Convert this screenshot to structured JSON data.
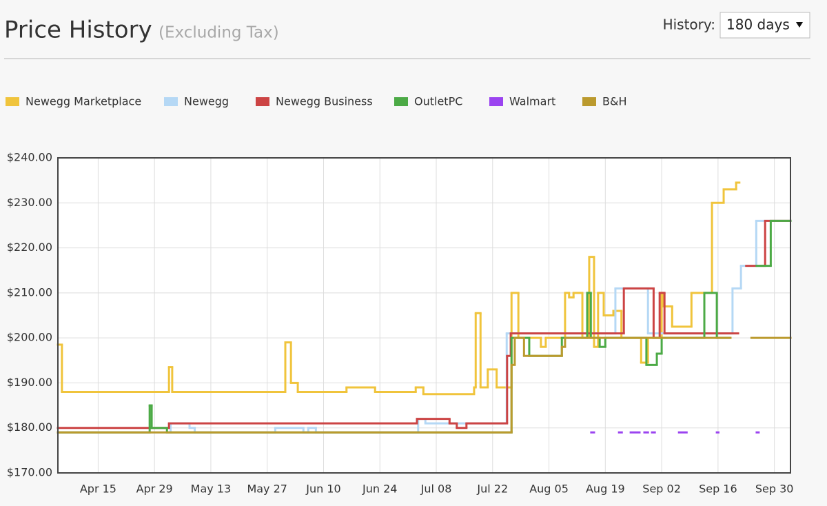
{
  "controls": {
    "history_label": "History:",
    "history_value": "180 days"
  },
  "chart_data": {
    "type": "step-line",
    "title": "Price History",
    "subtitle": "(Excluding Tax)",
    "xlim": [
      0,
      182
    ],
    "ylim": [
      170,
      240
    ],
    "grid": true,
    "xticks": [
      {
        "value": 10,
        "label": "Apr 15"
      },
      {
        "value": 24,
        "label": "Apr 29"
      },
      {
        "value": 38,
        "label": "May 13"
      },
      {
        "value": 52,
        "label": "May 27"
      },
      {
        "value": 66,
        "label": "Jun 10"
      },
      {
        "value": 80,
        "label": "Jun 24"
      },
      {
        "value": 94,
        "label": "Jul 08"
      },
      {
        "value": 108,
        "label": "Jul 22"
      },
      {
        "value": 122,
        "label": "Aug 05"
      },
      {
        "value": 136,
        "label": "Aug 19"
      },
      {
        "value": 150,
        "label": "Sep 02"
      },
      {
        "value": 164,
        "label": "Sep 16"
      },
      {
        "value": 178,
        "label": "Sep 30"
      }
    ],
    "yticks": [
      {
        "value": 170,
        "label": "$170.00"
      },
      {
        "value": 180,
        "label": "$180.00"
      },
      {
        "value": 190,
        "label": "$190.00"
      },
      {
        "value": 200,
        "label": "$200.00"
      },
      {
        "value": 210,
        "label": "$210.00"
      },
      {
        "value": 220,
        "label": "$220.00"
      },
      {
        "value": 230,
        "label": "$230.00"
      },
      {
        "value": 240,
        "label": "$240.00"
      }
    ],
    "series": [
      {
        "name": "Newegg Marketplace",
        "color": "#f0c43c",
        "x": [
          0,
          1,
          27.6,
          28.4,
          56.5,
          57.9,
          59.6,
          71.7,
          78.8,
          88.9,
          90.8,
          103.4,
          103.8,
          105,
          106.8,
          109,
          112.7,
          114.4,
          120,
          121.2,
          126,
          127,
          128.1,
          130.3,
          132,
          133.2,
          134.2,
          135.6,
          138,
          140,
          144.9,
          146.6,
          150,
          150.5,
          152.6,
          157.4,
          162.5,
          165.4,
          168.5,
          169.3
        ],
        "values": [
          198.5,
          188,
          193.5,
          188,
          199,
          190,
          188,
          189,
          188,
          189,
          187.5,
          189,
          205.5,
          189,
          193,
          189,
          210,
          200,
          198,
          200,
          210,
          209,
          210,
          200,
          218,
          198,
          210,
          205,
          206,
          200,
          194.5,
          200,
          210,
          207,
          202.5,
          210,
          230,
          233,
          234.5,
          null
        ]
      },
      {
        "name": "Newegg",
        "color": "#b5d8f5",
        "x": [
          0,
          28,
          32.7,
          34,
          54,
          61,
          62.2,
          64.1,
          89.5,
          91.3,
          111.5,
          138.5,
          146.6,
          167.6,
          169.7,
          173.5,
          182
        ],
        "values": [
          179,
          181,
          180,
          179,
          180,
          179,
          180,
          179,
          182,
          181,
          201,
          211,
          201,
          211,
          216,
          226,
          null
        ]
      },
      {
        "name": "Newegg Business",
        "color": "#cc4444",
        "x": [
          0,
          27.6,
          89.2,
          97.3,
          99.1,
          101.5,
          111.6,
          112.5,
          140.6,
          148,
          149.5,
          150.7,
          169,
          171,
          175.7,
          182
        ],
        "values": [
          180,
          181,
          182,
          181,
          180,
          181,
          196,
          201,
          211,
          200,
          210,
          201,
          null,
          216,
          226,
          null
        ]
      },
      {
        "name": "OutletPC",
        "color": "#4caa46",
        "x": [
          0,
          22.8,
          23.3,
          27.1,
          112.7,
          117.1,
          125.2,
          131.5,
          132.4,
          134.6,
          136,
          146.2,
          148.8,
          150,
          160.6,
          163.7,
          166.8,
          173.6,
          177.1,
          182
        ],
        "values": [
          179,
          185,
          180,
          179,
          200,
          196,
          200,
          210,
          200,
          198,
          200,
          194,
          196.5,
          200,
          210,
          200,
          null,
          216,
          226,
          null
        ]
      },
      {
        "name": "Walmart",
        "color": "#9b44f0",
        "x": [
          132.5,
          133.2,
          139.4,
          140.1,
          142.3,
          144.5,
          145.7,
          146.6,
          147.6,
          148.3,
          154.3,
          156.2,
          163.7,
          164.1,
          173.6,
          174.1
        ],
        "values": [
          179,
          null,
          179,
          null,
          179,
          null,
          179,
          null,
          179,
          null,
          179,
          null,
          179,
          null,
          179,
          null
        ]
      },
      {
        "name": "B&H",
        "color": "#bb9a2e",
        "x": [
          0,
          112.7,
          113.5,
          115.8,
          125.2,
          126,
          167.1,
          172.3,
          182
        ],
        "values": [
          179,
          194,
          200,
          196,
          198,
          200,
          null,
          200,
          null
        ]
      }
    ]
  }
}
